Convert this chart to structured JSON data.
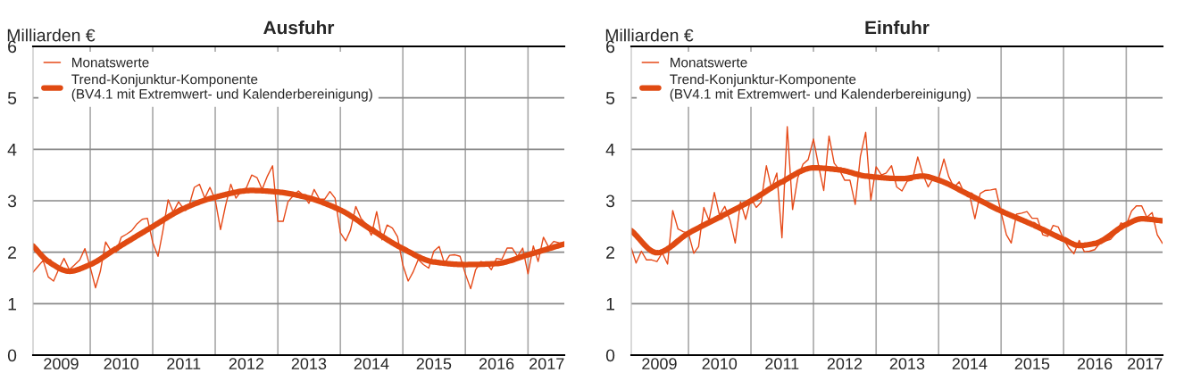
{
  "chart_data": [
    {
      "type": "line",
      "title": "Ausfuhr",
      "ylabel": "Milliarden €",
      "legend": "top left",
      "grid": true,
      "x": [
        "2009-02",
        "2009-03",
        "2009-04",
        "2009-05",
        "2009-06",
        "2009-07",
        "2009-08",
        "2009-09",
        "2009-10",
        "2009-11",
        "2009-12",
        "2010-01",
        "2010-02",
        "2010-03",
        "2010-04",
        "2010-05",
        "2010-06",
        "2010-07",
        "2010-08",
        "2010-09",
        "2010-10",
        "2010-11",
        "2010-12",
        "2011-01",
        "2011-02",
        "2011-03",
        "2011-04",
        "2011-05",
        "2011-06",
        "2011-07",
        "2011-08",
        "2011-09",
        "2011-10",
        "2011-11",
        "2011-12",
        "2012-01",
        "2012-02",
        "2012-03",
        "2012-04",
        "2012-05",
        "2012-06",
        "2012-07",
        "2012-08",
        "2012-09",
        "2012-10",
        "2012-11",
        "2012-12",
        "2013-01",
        "2013-02",
        "2013-03",
        "2013-04",
        "2013-05",
        "2013-06",
        "2013-07",
        "2013-08",
        "2013-09",
        "2013-10",
        "2013-11",
        "2013-12",
        "2014-01",
        "2014-02",
        "2014-03",
        "2014-04",
        "2014-05",
        "2014-06",
        "2014-07",
        "2014-08",
        "2014-09",
        "2014-10",
        "2014-11",
        "2014-12",
        "2015-01",
        "2015-02",
        "2015-03",
        "2015-04",
        "2015-05",
        "2015-06",
        "2015-07",
        "2015-08",
        "2015-09",
        "2015-10",
        "2015-11",
        "2015-12",
        "2016-01",
        "2016-02",
        "2016-03",
        "2016-04",
        "2016-05",
        "2016-06",
        "2016-07",
        "2016-08",
        "2016-09",
        "2016-10",
        "2016-11",
        "2016-12",
        "2017-01",
        "2017-02",
        "2017-03",
        "2017-04",
        "2017-05",
        "2017-06",
        "2017-07",
        "2017-08"
      ],
      "series": [
        {
          "name": "Monatswerte",
          "color": "#e64a19",
          "values": [
            1.61,
            1.72,
            1.84,
            1.52,
            1.44,
            1.67,
            1.88,
            1.66,
            1.75,
            1.85,
            2.07,
            1.71,
            1.31,
            1.63,
            2.2,
            2.03,
            2.0,
            2.29,
            2.35,
            2.42,
            2.55,
            2.64,
            2.66,
            2.19,
            1.92,
            2.41,
            3.02,
            2.78,
            2.98,
            2.84,
            2.9,
            3.26,
            3.32,
            3.05,
            3.26,
            3.02,
            2.44,
            2.9,
            3.32,
            3.05,
            3.19,
            3.25,
            3.5,
            3.45,
            3.22,
            3.48,
            3.68,
            2.6,
            2.6,
            2.98,
            3.1,
            3.19,
            3.1,
            2.95,
            3.22,
            3.03,
            3.03,
            3.18,
            3.05,
            2.38,
            2.22,
            2.43,
            2.89,
            2.66,
            2.54,
            2.33,
            2.79,
            2.24,
            2.53,
            2.47,
            2.3,
            1.75,
            1.44,
            1.61,
            1.86,
            1.76,
            1.69,
            2.02,
            2.11,
            1.78,
            1.94,
            1.95,
            1.92,
            1.58,
            1.29,
            1.66,
            1.82,
            1.79,
            1.66,
            1.88,
            1.86,
            2.08,
            2.08,
            1.92,
            2.08,
            1.58,
            2.12,
            1.82,
            2.29,
            2.1,
            2.21,
            2.18,
            2.16
          ]
        },
        {
          "name": "Trend-Konjunktur-Komponente\n(BV4.1 mit Extremwert- und Kalenderbereinigung)",
          "color": "#e04a12",
          "x": [
            "2009-02",
            "2009-05",
            "2009-09",
            "2010-01",
            "2010-06",
            "2011-01",
            "2011-07",
            "2012-01",
            "2012-08",
            "2013-01",
            "2013-06",
            "2014-01",
            "2014-07",
            "2015-01",
            "2015-07",
            "2016-01",
            "2016-07",
            "2017-01",
            "2017-08"
          ],
          "values": [
            2.12,
            1.82,
            1.63,
            1.76,
            2.07,
            2.5,
            2.85,
            3.07,
            3.2,
            3.17,
            3.08,
            2.82,
            2.44,
            2.07,
            1.81,
            1.76,
            1.78,
            1.95,
            2.16
          ]
        }
      ],
      "xlim": [
        "2009-02",
        "2017-08"
      ],
      "xticks": [
        {
          "value": "2009-07-15",
          "label": "2009"
        },
        {
          "value": "2010-01",
          "label": null
        },
        {
          "value": "2010-07",
          "label": "2010"
        },
        {
          "value": "2011-01",
          "label": null
        },
        {
          "value": "2011-07",
          "label": "2011"
        },
        {
          "value": "2012-01",
          "label": null
        },
        {
          "value": "2012-07",
          "label": "2012"
        },
        {
          "value": "2013-01",
          "label": null
        },
        {
          "value": "2013-07",
          "label": "2013"
        },
        {
          "value": "2014-01",
          "label": null
        },
        {
          "value": "2014-07",
          "label": "2014"
        },
        {
          "value": "2015-01",
          "label": null
        },
        {
          "value": "2015-07",
          "label": "2015"
        },
        {
          "value": "2016-01",
          "label": null
        },
        {
          "value": "2016-07",
          "label": "2016"
        },
        {
          "value": "2017-01",
          "label": null
        },
        {
          "value": "2017-04-20",
          "label": "2017"
        }
      ],
      "ylim": [
        0,
        6
      ],
      "yticks": [
        0,
        1,
        2,
        3,
        4,
        5,
        6
      ]
    },
    {
      "type": "line",
      "title": "Einfuhr",
      "ylabel": "Milliarden €",
      "legend": "top left",
      "grid": true,
      "x": [
        "2009-02",
        "2009-03",
        "2009-04",
        "2009-05",
        "2009-06",
        "2009-07",
        "2009-08",
        "2009-09",
        "2009-10",
        "2009-11",
        "2009-12",
        "2010-01",
        "2010-02",
        "2010-03",
        "2010-04",
        "2010-05",
        "2010-06",
        "2010-07",
        "2010-08",
        "2010-09",
        "2010-10",
        "2010-11",
        "2010-12",
        "2011-01",
        "2011-02",
        "2011-03",
        "2011-04",
        "2011-05",
        "2011-06",
        "2011-07",
        "2011-08",
        "2011-09",
        "2011-10",
        "2011-11",
        "2011-12",
        "2012-01",
        "2012-02",
        "2012-03",
        "2012-04",
        "2012-05",
        "2012-06",
        "2012-07",
        "2012-08",
        "2012-09",
        "2012-10",
        "2012-11",
        "2012-12",
        "2013-01",
        "2013-02",
        "2013-03",
        "2013-04",
        "2013-05",
        "2013-06",
        "2013-07",
        "2013-08",
        "2013-09",
        "2013-10",
        "2013-11",
        "2013-12",
        "2014-01",
        "2014-02",
        "2014-03",
        "2014-04",
        "2014-05",
        "2014-06",
        "2014-07",
        "2014-08",
        "2014-09",
        "2014-10",
        "2014-11",
        "2014-12",
        "2015-01",
        "2015-02",
        "2015-03",
        "2015-04",
        "2015-05",
        "2015-06",
        "2015-07",
        "2015-08",
        "2015-09",
        "2015-10",
        "2015-11",
        "2015-12",
        "2016-01",
        "2016-02",
        "2016-03",
        "2016-04",
        "2016-05",
        "2016-06",
        "2016-07",
        "2016-08",
        "2016-09",
        "2016-10",
        "2016-11",
        "2016-12",
        "2017-01",
        "2017-02",
        "2017-03",
        "2017-04",
        "2017-05",
        "2017-06",
        "2017-07",
        "2017-08"
      ],
      "series": [
        {
          "name": "Monatswerte",
          "color": "#e64a19",
          "values": [
            2.08,
            1.79,
            2.02,
            1.85,
            1.85,
            1.82,
            1.99,
            1.77,
            2.81,
            2.45,
            2.4,
            2.37,
            1.98,
            2.11,
            2.87,
            2.62,
            3.16,
            2.72,
            2.89,
            2.62,
            2.18,
            2.98,
            2.64,
            3.05,
            2.87,
            2.97,
            3.68,
            3.24,
            3.54,
            2.28,
            4.44,
            2.83,
            3.44,
            3.71,
            3.8,
            4.2,
            3.66,
            3.2,
            4.26,
            3.73,
            3.6,
            3.4,
            3.4,
            2.93,
            3.86,
            4.33,
            3.01,
            3.66,
            3.5,
            3.54,
            3.68,
            3.27,
            3.19,
            3.38,
            3.4,
            3.85,
            3.51,
            3.27,
            3.44,
            3.43,
            3.81,
            3.47,
            3.26,
            3.37,
            3.14,
            3.11,
            2.65,
            3.14,
            3.2,
            3.21,
            3.23,
            2.77,
            2.34,
            2.18,
            2.74,
            2.76,
            2.79,
            2.66,
            2.66,
            2.34,
            2.31,
            2.52,
            2.49,
            2.25,
            2.08,
            1.97,
            2.23,
            2.01,
            2.02,
            2.05,
            2.18,
            2.22,
            2.25,
            2.37,
            2.57,
            2.53,
            2.8,
            2.9,
            2.9,
            2.68,
            2.77,
            2.34,
            2.17
          ]
        },
        {
          "name": "Trend-Konjunktur-Komponente\n(BV4.1 mit Extremwert- und Kalenderbereinigung)",
          "color": "#e04a12",
          "x": [
            "2009-02",
            "2009-07",
            "2010-01",
            "2010-07",
            "2011-01",
            "2011-07",
            "2012-01",
            "2012-06",
            "2012-11",
            "2013-06",
            "2013-10",
            "2014-01",
            "2014-07",
            "2015-01",
            "2015-07",
            "2016-01",
            "2016-04",
            "2016-07",
            "2017-01",
            "2017-04",
            "2017-08"
          ],
          "values": [
            2.42,
            1.99,
            2.37,
            2.68,
            3.0,
            3.37,
            3.64,
            3.6,
            3.48,
            3.43,
            3.48,
            3.4,
            3.11,
            2.8,
            2.54,
            2.25,
            2.13,
            2.17,
            2.54,
            2.65,
            2.61
          ]
        }
      ],
      "xlim": [
        "2009-02",
        "2017-08"
      ],
      "xticks": [
        {
          "value": "2009-07-15",
          "label": "2009"
        },
        {
          "value": "2010-01",
          "label": null
        },
        {
          "value": "2010-07",
          "label": "2010"
        },
        {
          "value": "2011-01",
          "label": null
        },
        {
          "value": "2011-07",
          "label": "2011"
        },
        {
          "value": "2012-01",
          "label": null
        },
        {
          "value": "2012-07",
          "label": "2012"
        },
        {
          "value": "2013-01",
          "label": null
        },
        {
          "value": "2013-07",
          "label": "2013"
        },
        {
          "value": "2014-01",
          "label": null
        },
        {
          "value": "2014-07",
          "label": "2014"
        },
        {
          "value": "2015-01",
          "label": null
        },
        {
          "value": "2015-07",
          "label": "2015"
        },
        {
          "value": "2016-01",
          "label": null
        },
        {
          "value": "2016-07",
          "label": "2016"
        },
        {
          "value": "2017-01",
          "label": null
        },
        {
          "value": "2017-04-20",
          "label": "2017"
        }
      ],
      "ylim": [
        0,
        6
      ],
      "yticks": [
        0,
        1,
        2,
        3,
        4,
        5,
        6
      ]
    }
  ]
}
